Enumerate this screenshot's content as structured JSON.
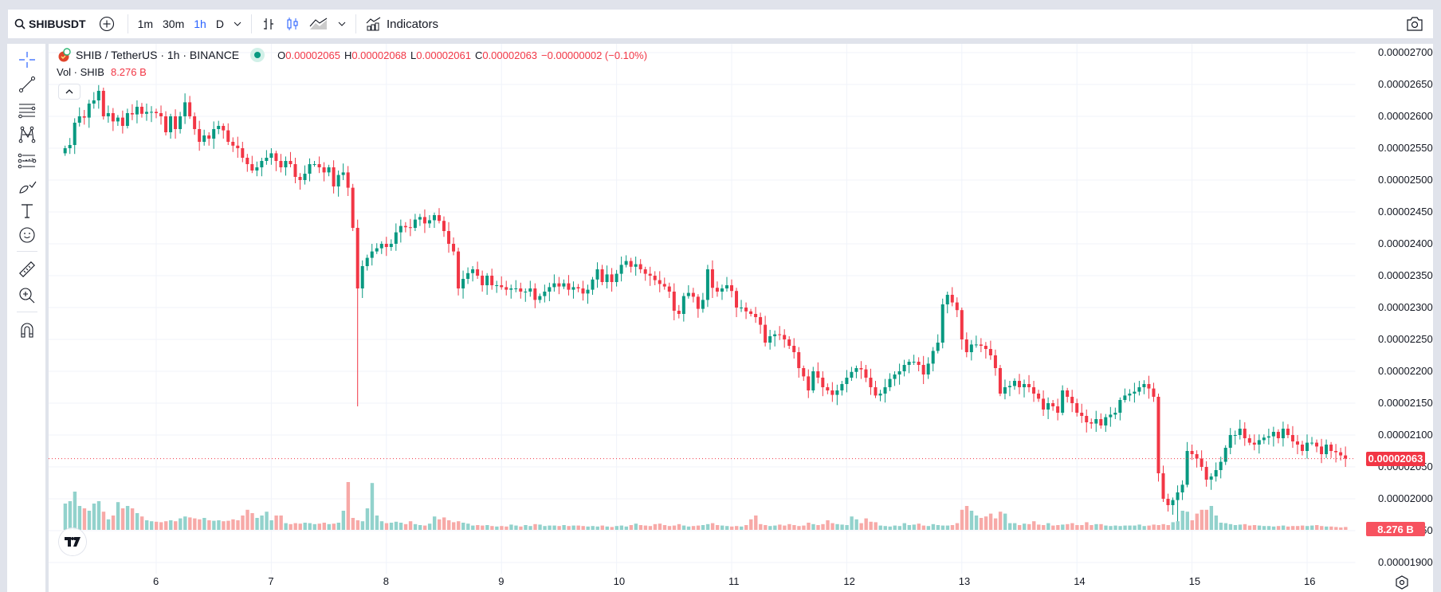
{
  "toolbar": {
    "symbol": "SHIBUSDT",
    "intervals": [
      {
        "label": "1m",
        "active": false
      },
      {
        "label": "30m",
        "active": false
      },
      {
        "label": "1h",
        "active": true
      },
      {
        "label": "D",
        "active": false
      }
    ],
    "indicators_label": "Indicators",
    "icons": [
      "search-icon",
      "add-symbol-icon",
      "interval-dropdown-icon",
      "bar-chart-icon",
      "candles-icon",
      "area-chart-icon",
      "chart-type-dropdown-icon",
      "indicators-icon",
      "camera-icon"
    ]
  },
  "left_toolbar": {
    "tools": [
      "crosshair-icon",
      "trend-line-icon",
      "fib-retracement-icon",
      "pattern-icon",
      "prediction-icon",
      "brush-icon",
      "text-icon",
      "emoji-icon",
      "ruler-icon",
      "zoom-in-icon",
      "magnet-icon"
    ]
  },
  "legend": {
    "title": "SHIB / TetherUS · 1h · BINANCE",
    "open_label": "O",
    "open": "0.00002065",
    "high_label": "H",
    "high": "0.00002068",
    "low_label": "L",
    "low": "0.00002061",
    "close_label": "C",
    "close": "0.00002063",
    "change": "−0.00000002 (−0.10%)",
    "vol_label": "Vol · SHIB",
    "vol_value": "8.276 B"
  },
  "price_axis": {
    "labels": [
      "0.00002700",
      "0.00002650",
      "0.00002600",
      "0.00002550",
      "0.00002500",
      "0.00002450",
      "0.00002400",
      "0.00002350",
      "0.00002300",
      "0.00002250",
      "0.00002200",
      "0.00002150",
      "0.00002100",
      "0.00002050",
      "0.00002000",
      "0.00001950",
      "0.00001900"
    ],
    "current_price": "0.00002063",
    "current_volume": "8.276 B"
  },
  "time_axis": {
    "labels": [
      "6",
      "7",
      "8",
      "9",
      "10",
      "11",
      "12",
      "13",
      "14",
      "15",
      "16"
    ]
  },
  "colors": {
    "up": "#089981",
    "down": "#f23645",
    "vol_up": "#92d2cc",
    "vol_down": "#f7a9a7",
    "grid": "#f0f3fa",
    "accent": "#2962ff"
  },
  "chart_data": {
    "type": "candlestick",
    "title": "SHIB / TetherUS · 1h · BINANCE",
    "price_unit": "1e-8 USDT",
    "ylim": [
      1900,
      2700
    ],
    "x_start_hour_of_day5": 5,
    "closes": [
      2550,
      2555,
      2590,
      2600,
      2598,
      2620,
      2625,
      2640,
      2600,
      2605,
      2592,
      2598,
      2585,
      2605,
      2603,
      2615,
      2604,
      2607,
      2607,
      2605,
      2600,
      2575,
      2600,
      2580,
      2600,
      2622,
      2600,
      2580,
      2560,
      2570,
      2565,
      2580,
      2585,
      2578,
      2560,
      2554,
      2550,
      2535,
      2525,
      2515,
      2520,
      2530,
      2535,
      2542,
      2530,
      2520,
      2530,
      2525,
      2505,
      2500,
      2510,
      2525,
      2525,
      2520,
      2512,
      2520,
      2490,
      2508,
      2512,
      2488,
      2425,
      2330,
      2365,
      2378,
      2388,
      2393,
      2400,
      2395,
      2400,
      2418,
      2428,
      2426,
      2425,
      2438,
      2442,
      2432,
      2437,
      2445,
      2436,
      2420,
      2400,
      2388,
      2330,
      2345,
      2354,
      2360,
      2350,
      2335,
      2350,
      2335,
      2335,
      2332,
      2328,
      2330,
      2330,
      2325,
      2325,
      2330,
      2312,
      2318,
      2325,
      2332,
      2338,
      2333,
      2338,
      2328,
      2332,
      2330,
      2322,
      2328,
      2344,
      2360,
      2340,
      2352,
      2340,
      2353,
      2367,
      2373,
      2364,
      2368,
      2360,
      2353,
      2350,
      2343,
      2337,
      2333,
      2325,
      2295,
      2290,
      2318,
      2323,
      2317,
      2298,
      2312,
      2360,
      2331,
      2325,
      2330,
      2335,
      2326,
      2300,
      2300,
      2294,
      2290,
      2285,
      2273,
      2245,
      2255,
      2258,
      2257,
      2250,
      2240,
      2230,
      2205,
      2192,
      2170,
      2200,
      2190,
      2175,
      2170,
      2163,
      2170,
      2180,
      2190,
      2199,
      2205,
      2203,
      2190,
      2175,
      2162,
      2165,
      2175,
      2188,
      2195,
      2200,
      2210,
      2215,
      2215,
      2210,
      2195,
      2212,
      2232,
      2245,
      2305,
      2320,
      2308,
      2296,
      2250,
      2230,
      2242,
      2242,
      2240,
      2235,
      2225,
      2205,
      2165,
      2175,
      2177,
      2185,
      2175,
      2180,
      2175,
      2165,
      2157,
      2140,
      2150,
      2145,
      2135,
      2170,
      2160,
      2150,
      2135,
      2130,
      2120,
      2118,
      2125,
      2115,
      2128,
      2132,
      2135,
      2155,
      2162,
      2165,
      2168,
      2175,
      2180,
      2173,
      2160,
      2040,
      2000,
      1990,
      1998,
      2010,
      2022,
      2075,
      2070,
      2063,
      2050,
      2030,
      2035,
      2045,
      2058,
      2080,
      2100,
      2100,
      2110,
      2095,
      2088,
      2085,
      2092,
      2096,
      2098,
      2105,
      2095,
      2110,
      2100,
      2090,
      2085,
      2075,
      2088,
      2088,
      2082,
      2070,
      2085,
      2075,
      2073,
      2068,
      2063
    ],
    "volumes": [
      55,
      60,
      80,
      50,
      45,
      40,
      55,
      60,
      38,
      22,
      30,
      58,
      45,
      50,
      45,
      35,
      28,
      20,
      18,
      17,
      16,
      18,
      20,
      18,
      24,
      28,
      26,
      24,
      22,
      25,
      20,
      19,
      20,
      18,
      19,
      22,
      20,
      30,
      42,
      35,
      25,
      30,
      38,
      20,
      30,
      30,
      14,
      12,
      14,
      13,
      15,
      14,
      12,
      13,
      15,
      12,
      13,
      15,
      40,
      100,
      25,
      20,
      18,
      45,
      98,
      30,
      18,
      14,
      15,
      17,
      15,
      12,
      18,
      12,
      10,
      9,
      13,
      28,
      22,
      26,
      20,
      16,
      18,
      15,
      13,
      9,
      10,
      9,
      10,
      8,
      7,
      8,
      7,
      11,
      9,
      7,
      10,
      8,
      12,
      11,
      8,
      9,
      9,
      8,
      10,
      8,
      9,
      9,
      8,
      7,
      8,
      7,
      9,
      7,
      6,
      8,
      9,
      7,
      10,
      13,
      10,
      9,
      8,
      12,
      13,
      10,
      8,
      9,
      12,
      9,
      7,
      8,
      9,
      10,
      12,
      14,
      10,
      9,
      8,
      7,
      8,
      7,
      10,
      22,
      30,
      12,
      10,
      8,
      9,
      11,
      9,
      12,
      10,
      8,
      9,
      15,
      12,
      10,
      12,
      20,
      14,
      12,
      11,
      10,
      28,
      22,
      14,
      24,
      17,
      16,
      9,
      8,
      7,
      9,
      8,
      14,
      10,
      11,
      13,
      9,
      8,
      12,
      10,
      9,
      9,
      10,
      14,
      42,
      50,
      40,
      30,
      25,
      28,
      34,
      24,
      38,
      34,
      14,
      14,
      10,
      13,
      12,
      18,
      11,
      10,
      14,
      9,
      10,
      11,
      12,
      14,
      10,
      10,
      16,
      10,
      12,
      12,
      9,
      8,
      9,
      8,
      9,
      9,
      9,
      11,
      8,
      9,
      11,
      10,
      12,
      10,
      16,
      18,
      40,
      38,
      20,
      34,
      42,
      42,
      50,
      30,
      15,
      14,
      12,
      10,
      11,
      12,
      9,
      10,
      9,
      8,
      8,
      7,
      8,
      9,
      7,
      8,
      8,
      9,
      8,
      9,
      10,
      8,
      7,
      7,
      6,
      5,
      6,
      5,
      4,
      4,
      3,
      3,
      4,
      3,
      2
    ]
  }
}
